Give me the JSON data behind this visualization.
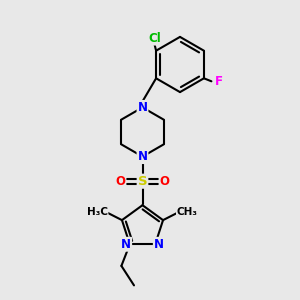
{
  "bg_color": "#e8e8e8",
  "atom_colors": {
    "C": "#000000",
    "N": "#0000ff",
    "O": "#ff0000",
    "S": "#cccc00",
    "Cl": "#00bb00",
    "F": "#ff00ff"
  },
  "bond_color": "#000000",
  "bond_width": 1.5,
  "font_size": 8.5,
  "fig_size": [
    3.0,
    3.0
  ],
  "dpi": 100
}
